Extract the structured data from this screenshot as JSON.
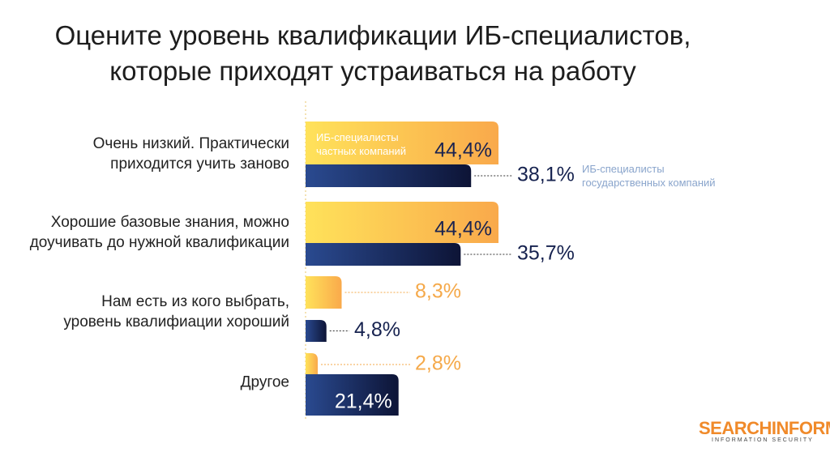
{
  "chart_data": {
    "type": "bar",
    "orientation": "horizontal",
    "title": "Оцените уровень квалификации ИБ-специалистов,\nкоторые приходят устраиваться на работу",
    "categories": [
      "Очень низкий. Практически\nприходится учить заново",
      "Хорошие базовые знания, можно\nдоучивать до нужной квалификации",
      "Нам есть из кого выбрать,\nуровень квалифиации хороший",
      "Другое"
    ],
    "series": [
      {
        "name": "ИБ-специалисты\nчастных компаний",
        "color": "#f9a94b",
        "values": [
          44.4,
          44.4,
          8.3,
          2.8
        ],
        "value_labels": [
          "44,4%",
          "44,4%",
          "8,3%",
          "2,8%"
        ]
      },
      {
        "name": "ИБ-специалисты\nгосударственных компаний",
        "color": "#16224f",
        "values": [
          38.1,
          35.7,
          4.8,
          21.4
        ],
        "value_labels": [
          "38,1%",
          "35,7%",
          "4,8%",
          "21,4%"
        ]
      }
    ],
    "logo": "SEARCHINFORM",
    "logo_subtitle": "INFORMATION SECURITY"
  }
}
